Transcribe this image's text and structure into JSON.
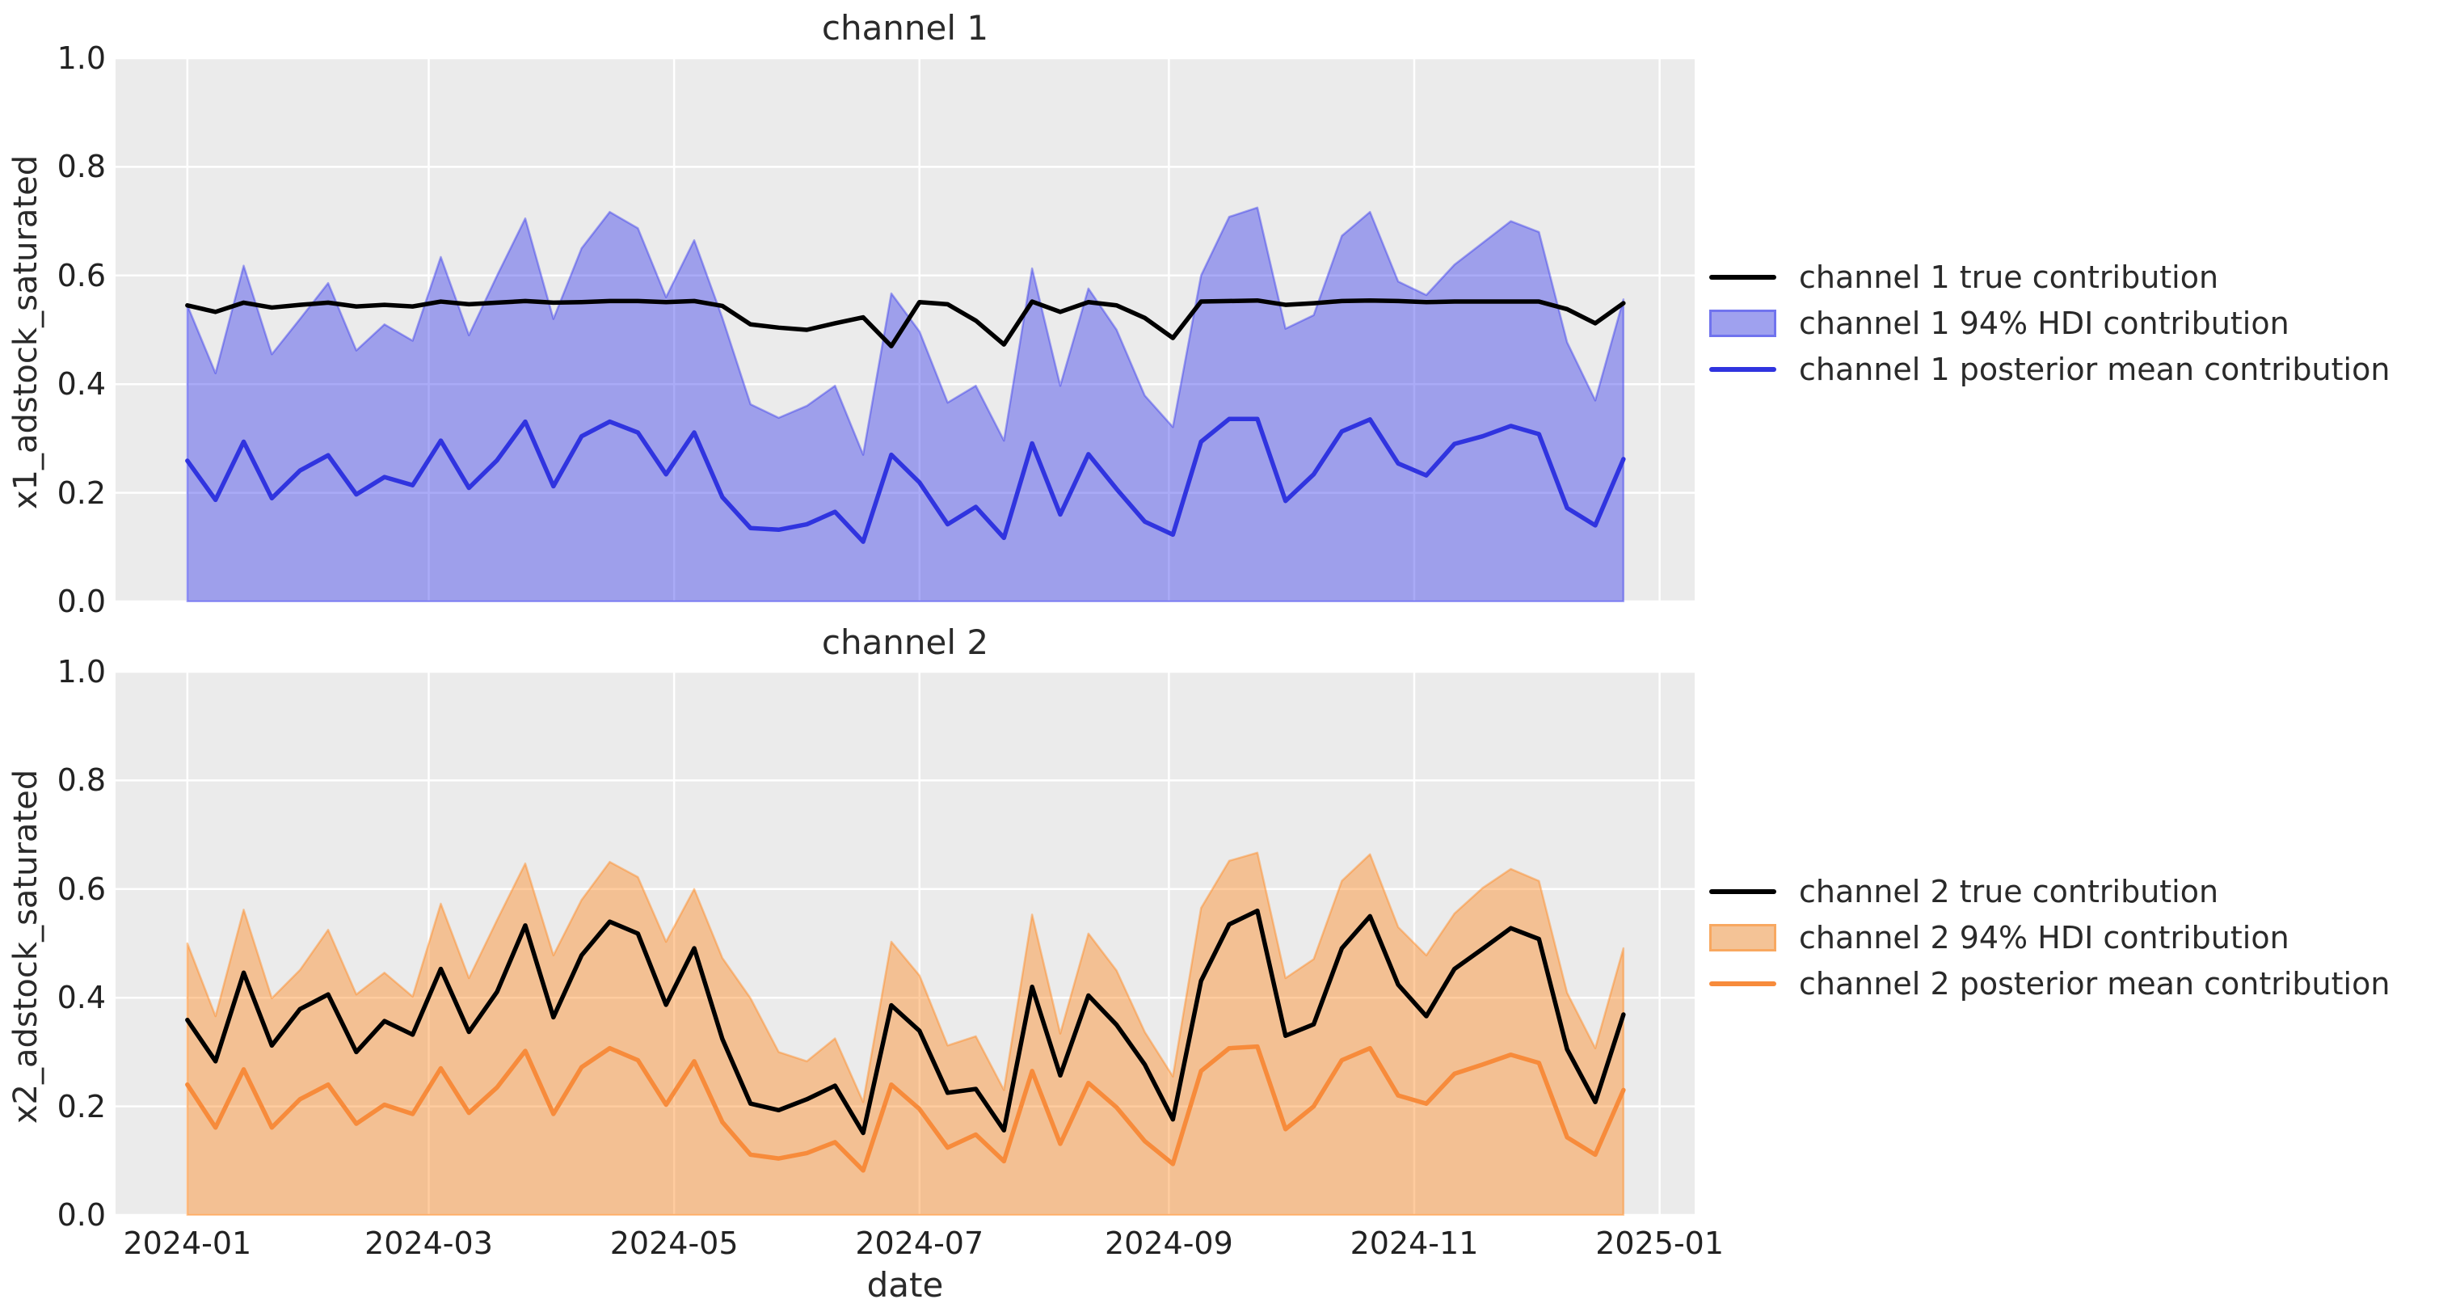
{
  "figure": {
    "background": "#ffffff",
    "axes_background": "#ebebeb",
    "grid_color": "#ffffff",
    "text_color": "#2a2a2a"
  },
  "chart_data": [
    {
      "type": "area",
      "title": "channel 1",
      "ylabel": "x1_adstock_saturated",
      "xlabel": "",
      "x_start": "2024-01-01",
      "x_freq": "weekly",
      "n_points": 52,
      "ylim": [
        0.0,
        1.0
      ],
      "grid": true,
      "legend_position": "right-of-axes",
      "y_tick_labels": [
        "0.0",
        "0.2",
        "0.4",
        "0.6",
        "0.8",
        "1.0"
      ],
      "x_tick_labels": [],
      "x_tick_weeks": [
        0,
        8.571,
        17.286,
        26.0,
        34.857,
        43.571,
        52.286
      ],
      "series": [
        {
          "name": "channel 1 true contribution",
          "kind": "line",
          "color": "#000000",
          "values": [
            0.545,
            0.533,
            0.55,
            0.541,
            0.546,
            0.55,
            0.543,
            0.546,
            0.543,
            0.552,
            0.547,
            0.55,
            0.553,
            0.55,
            0.551,
            0.553,
            0.553,
            0.551,
            0.553,
            0.544,
            0.51,
            0.504,
            0.5,
            0.512,
            0.523,
            0.47,
            0.551,
            0.547,
            0.517,
            0.473,
            0.552,
            0.533,
            0.551,
            0.545,
            0.522,
            0.485,
            0.552,
            0.553,
            0.554,
            0.546,
            0.549,
            0.553,
            0.554,
            0.553,
            0.551,
            0.552,
            0.552,
            0.552,
            0.552,
            0.538,
            0.512,
            0.549
          ]
        },
        {
          "name": "channel 1 94% HDI contribution",
          "kind": "band",
          "fill_rgba": "rgba(42,46,236,0.40)",
          "fill_flat": "#9fa1ef",
          "edge_flat": "#7073ee",
          "lower": [
            0,
            0,
            0,
            0,
            0,
            0,
            0,
            0,
            0,
            0,
            0,
            0,
            0,
            0,
            0,
            0,
            0,
            0,
            0,
            0,
            0,
            0,
            0,
            0,
            0,
            0,
            0,
            0,
            0,
            0,
            0,
            0,
            0,
            0,
            0,
            0,
            0,
            0,
            0,
            0,
            0,
            0,
            0,
            0,
            0,
            0,
            0,
            0,
            0,
            0,
            0,
            0
          ],
          "upper": [
            0.545,
            0.42,
            0.618,
            0.455,
            0.52,
            0.586,
            0.462,
            0.51,
            0.48,
            0.634,
            0.49,
            0.6,
            0.705,
            0.52,
            0.65,
            0.717,
            0.687,
            0.56,
            0.665,
            0.522,
            0.363,
            0.338,
            0.36,
            0.397,
            0.27,
            0.567,
            0.497,
            0.366,
            0.397,
            0.296,
            0.613,
            0.397,
            0.576,
            0.5,
            0.379,
            0.321,
            0.6,
            0.708,
            0.725,
            0.502,
            0.527,
            0.673,
            0.717,
            0.589,
            0.564,
            0.62,
            0.66,
            0.7,
            0.68,
            0.477,
            0.37,
            0.556
          ]
        },
        {
          "name": "channel 1 posterior mean contribution",
          "kind": "line",
          "color": "#3034df",
          "values": [
            0.259,
            0.187,
            0.294,
            0.19,
            0.241,
            0.269,
            0.197,
            0.229,
            0.214,
            0.296,
            0.209,
            0.26,
            0.331,
            0.212,
            0.304,
            0.331,
            0.311,
            0.234,
            0.311,
            0.192,
            0.135,
            0.132,
            0.142,
            0.165,
            0.11,
            0.27,
            0.219,
            0.142,
            0.174,
            0.117,
            0.291,
            0.16,
            0.271,
            0.207,
            0.147,
            0.123,
            0.294,
            0.336,
            0.336,
            0.185,
            0.234,
            0.313,
            0.335,
            0.254,
            0.232,
            0.29,
            0.304,
            0.323,
            0.308,
            0.172,
            0.14,
            0.262
          ]
        }
      ]
    },
    {
      "type": "area",
      "title": "channel 2",
      "ylabel": "x2_adstock_saturated",
      "xlabel": "date",
      "x_start": "2024-01-01",
      "x_freq": "weekly",
      "n_points": 52,
      "ylim": [
        0.0,
        1.0
      ],
      "grid": true,
      "legend_position": "right-of-axes",
      "y_tick_labels": [
        "0.0",
        "0.2",
        "0.4",
        "0.6",
        "0.8",
        "1.0"
      ],
      "x_tick_labels": [
        "2024-01",
        "2024-03",
        "2024-05",
        "2024-07",
        "2024-09",
        "2024-11",
        "2025-01"
      ],
      "x_tick_weeks": [
        0,
        8.571,
        17.286,
        26.0,
        34.857,
        43.571,
        52.286
      ],
      "series": [
        {
          "name": "channel 2 true contribution",
          "kind": "line",
          "color": "#000000",
          "values": [
            0.359,
            0.283,
            0.446,
            0.312,
            0.379,
            0.406,
            0.3,
            0.357,
            0.332,
            0.453,
            0.337,
            0.411,
            0.533,
            0.364,
            0.478,
            0.54,
            0.518,
            0.387,
            0.491,
            0.324,
            0.205,
            0.193,
            0.213,
            0.238,
            0.151,
            0.386,
            0.339,
            0.225,
            0.232,
            0.156,
            0.42,
            0.257,
            0.404,
            0.35,
            0.277,
            0.176,
            0.431,
            0.535,
            0.56,
            0.33,
            0.351,
            0.491,
            0.55,
            0.424,
            0.366,
            0.453,
            0.49,
            0.528,
            0.508,
            0.305,
            0.208,
            0.369
          ]
        },
        {
          "name": "channel 2 94% HDI contribution",
          "kind": "band",
          "fill_rgba": "rgba(255,127,14,0.40)",
          "fill_flat": "#f4c396",
          "edge_flat": "#f8a860",
          "lower": [
            0,
            0,
            0,
            0,
            0,
            0,
            0,
            0,
            0,
            0,
            0,
            0,
            0,
            0,
            0,
            0,
            0,
            0,
            0,
            0,
            0,
            0,
            0,
            0,
            0,
            0,
            0,
            0,
            0,
            0,
            0,
            0,
            0,
            0,
            0,
            0,
            0,
            0,
            0,
            0,
            0,
            0,
            0,
            0,
            0,
            0,
            0,
            0,
            0,
            0,
            0,
            0
          ],
          "upper": [
            0.5,
            0.366,
            0.562,
            0.399,
            0.451,
            0.525,
            0.406,
            0.446,
            0.402,
            0.573,
            0.436,
            0.543,
            0.647,
            0.478,
            0.58,
            0.65,
            0.622,
            0.503,
            0.6,
            0.473,
            0.399,
            0.3,
            0.283,
            0.325,
            0.208,
            0.503,
            0.441,
            0.312,
            0.329,
            0.23,
            0.553,
            0.334,
            0.518,
            0.45,
            0.337,
            0.255,
            0.565,
            0.652,
            0.667,
            0.436,
            0.471,
            0.615,
            0.664,
            0.53,
            0.478,
            0.555,
            0.602,
            0.637,
            0.615,
            0.409,
            0.307,
            0.491
          ]
        },
        {
          "name": "channel 2 posterior mean contribution",
          "kind": "line",
          "color": "#f78b3b",
          "values": [
            0.24,
            0.161,
            0.268,
            0.161,
            0.213,
            0.24,
            0.168,
            0.203,
            0.186,
            0.27,
            0.188,
            0.235,
            0.302,
            0.186,
            0.272,
            0.307,
            0.285,
            0.203,
            0.283,
            0.171,
            0.111,
            0.104,
            0.114,
            0.134,
            0.082,
            0.24,
            0.195,
            0.124,
            0.148,
            0.099,
            0.265,
            0.131,
            0.243,
            0.198,
            0.136,
            0.094,
            0.265,
            0.307,
            0.31,
            0.158,
            0.2,
            0.285,
            0.307,
            0.22,
            0.205,
            0.26,
            0.277,
            0.295,
            0.28,
            0.143,
            0.111,
            0.23
          ]
        }
      ]
    }
  ]
}
